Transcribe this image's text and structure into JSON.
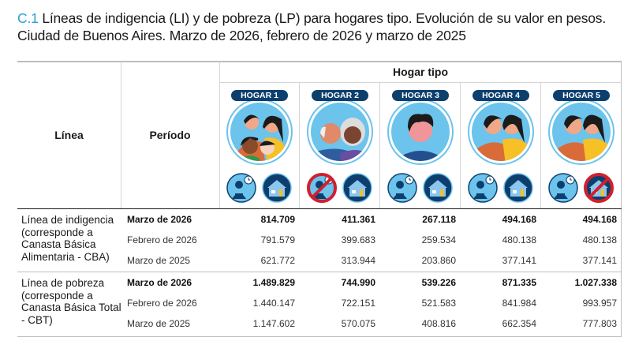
{
  "title": {
    "number": "C.1",
    "text": "Líneas de indigencia (LI) y de pobreza (LP) para hogares tipo. Evolución de su valor en pesos.",
    "line2": "Ciudad de Buenos Aires. Marzo de 2026, febrero de 2026 y marzo de 2025"
  },
  "header": {
    "linea": "Línea",
    "periodo": "Período",
    "hogar_tipo": "Hogar tipo"
  },
  "hogares": [
    {
      "label": "HOGAR 1",
      "people": "family-4",
      "works": true,
      "owns_home": true
    },
    {
      "label": "HOGAR 2",
      "people": "elderly-couple",
      "works": false,
      "owns_home": true
    },
    {
      "label": "HOGAR 3",
      "people": "single-man",
      "works": true,
      "owns_home": true
    },
    {
      "label": "HOGAR 4",
      "people": "couple",
      "works": true,
      "owns_home": true
    },
    {
      "label": "HOGAR 5",
      "people": "couple",
      "works": true,
      "owns_home": false
    }
  ],
  "colors": {
    "accent": "#2a9fd6",
    "pill": "#0d3f6e",
    "prohibited": "#d0202e",
    "circle": "#6cc3ec"
  },
  "groups": [
    {
      "label": "Línea de indigencia (corresponde a Canasta Básica Alimentaria - CBA)",
      "rows": [
        {
          "periodo": "Marzo de 2026",
          "values": [
            "814.709",
            "411.361",
            "267.118",
            "494.168",
            "494.168"
          ]
        },
        {
          "periodo": "Febrero de 2026",
          "values": [
            "791.579",
            "399.683",
            "259.534",
            "480.138",
            "480.138"
          ]
        },
        {
          "periodo": "Marzo de 2025",
          "values": [
            "621.772",
            "313.944",
            "203.860",
            "377.141",
            "377.141"
          ]
        }
      ]
    },
    {
      "label": "Línea de pobreza (corresponde a Canasta Básica Total - CBT)",
      "rows": [
        {
          "periodo": "Marzo de 2026",
          "values": [
            "1.489.829",
            "744.990",
            "539.226",
            "871.335",
            "1.027.338"
          ]
        },
        {
          "periodo": "Febrero de 2026",
          "values": [
            "1.440.147",
            "722.151",
            "521.583",
            "841.984",
            "993.957"
          ]
        },
        {
          "periodo": "Marzo de 2025",
          "values": [
            "1.147.602",
            "570.075",
            "408.816",
            "662.354",
            "777.803"
          ]
        }
      ]
    }
  ]
}
